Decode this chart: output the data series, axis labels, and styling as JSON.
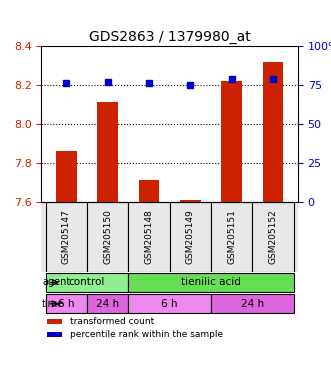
{
  "title": "GDS2863 / 1379980_at",
  "samples": [
    "GSM205147",
    "GSM205150",
    "GSM205148",
    "GSM205149",
    "GSM205151",
    "GSM205152"
  ],
  "bar_values": [
    7.86,
    8.11,
    7.71,
    7.61,
    8.22,
    8.32
  ],
  "bar_bottom": 7.6,
  "dot_values": [
    76,
    77,
    76,
    75,
    79,
    79
  ],
  "ylim_left": [
    7.6,
    8.4
  ],
  "ylim_right": [
    0,
    100
  ],
  "yticks_left": [
    7.6,
    7.8,
    8.0,
    8.2,
    8.4
  ],
  "yticks_right": [
    0,
    25,
    50,
    75,
    100
  ],
  "ytick_labels_right": [
    "0",
    "25",
    "50",
    "75",
    "100%"
  ],
  "bar_color": "#cc2200",
  "dot_color": "#0000cc",
  "agent_groups": [
    {
      "label": "control",
      "span": [
        0,
        2
      ],
      "color": "#90ee90"
    },
    {
      "label": "tienilic acid",
      "span": [
        2,
        6
      ],
      "color": "#66dd55"
    }
  ],
  "time_groups": [
    {
      "label": "6 h",
      "span": [
        0,
        1
      ],
      "color": "#ee88ee"
    },
    {
      "label": "24 h",
      "span": [
        1,
        2
      ],
      "color": "#dd66dd"
    },
    {
      "label": "6 h",
      "span": [
        2,
        4
      ],
      "color": "#ee88ee"
    },
    {
      "label": "24 h",
      "span": [
        4,
        6
      ],
      "color": "#dd66dd"
    }
  ],
  "legend_items": [
    {
      "label": "transformed count",
      "color": "#cc2200"
    },
    {
      "label": "percentile rank within the sample",
      "color": "#0000cc"
    }
  ],
  "grid_color": "#000000",
  "plot_bg": "#e8e8e8",
  "xlabel_color": "#000000",
  "left_tick_color": "#cc2200",
  "right_tick_color": "#0000cc"
}
